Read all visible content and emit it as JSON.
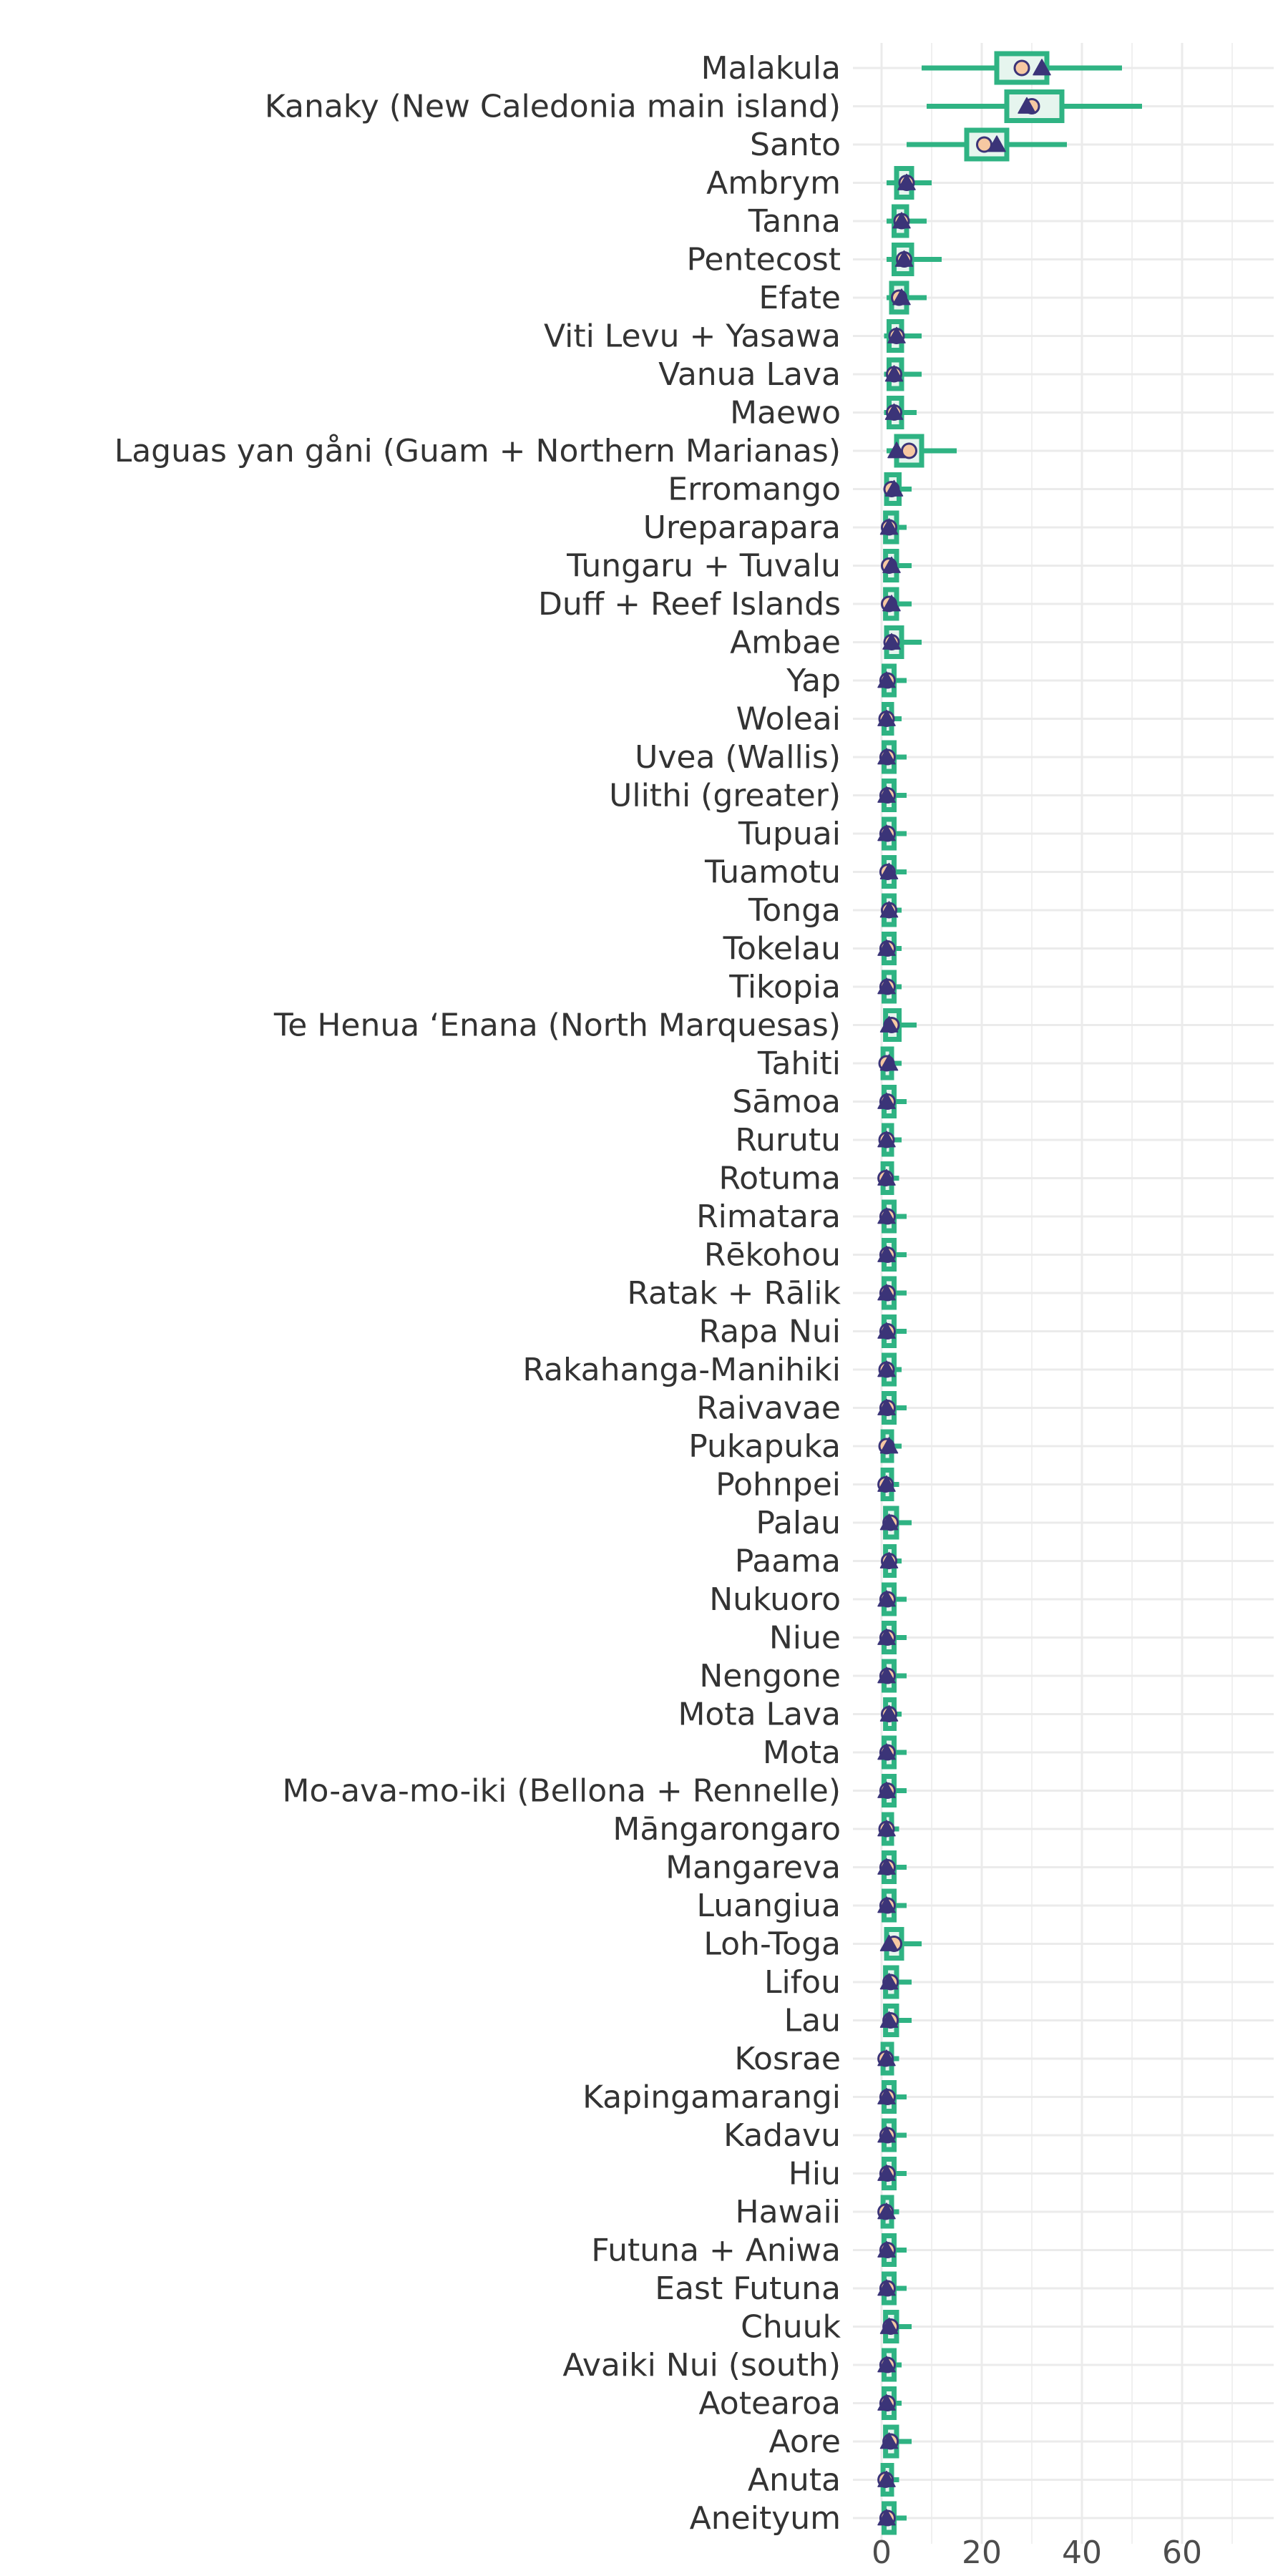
{
  "colors": {
    "whisker": "#2fb383",
    "box_edge": "#2fb383",
    "box_fill": "#e6f5ee",
    "mean_point": "#f6c8a2",
    "triangle": "#3b3478",
    "grid": "#ebebeb",
    "label": "#333333"
  },
  "chart_data": {
    "type": "boxplot",
    "orientation": "horizontal",
    "title": "",
    "xlabel": "",
    "ylabel": "",
    "xlim": [
      -4,
      78
    ],
    "x_ticks": [
      0,
      20,
      40,
      60
    ],
    "grid": "on",
    "legend": "none",
    "categories": [
      {
        "name": "Malakula",
        "lo": 8,
        "q1": 23,
        "q3": 33,
        "hi": 48,
        "dot": 28,
        "tri": 32
      },
      {
        "name": "Kanaky (New Caledonia main island)",
        "lo": 9,
        "q1": 25,
        "q3": 36,
        "hi": 52,
        "dot": 30,
        "tri": 29
      },
      {
        "name": "Santo",
        "lo": 5,
        "q1": 17,
        "q3": 25,
        "hi": 37,
        "dot": 20.5,
        "tri": 23
      },
      {
        "name": "Ambrym",
        "lo": 1,
        "q1": 3,
        "q3": 6,
        "hi": 10,
        "dot": 5,
        "tri": 5
      },
      {
        "name": "Tanna",
        "lo": 1,
        "q1": 2.5,
        "q3": 5,
        "hi": 9,
        "dot": 4,
        "tri": 4
      },
      {
        "name": "Pentecost",
        "lo": 1,
        "q1": 2.5,
        "q3": 6,
        "hi": 12,
        "dot": 4.5,
        "tri": 4.5
      },
      {
        "name": "Efate",
        "lo": 1,
        "q1": 2,
        "q3": 5,
        "hi": 9,
        "dot": 3.5,
        "tri": 4
      },
      {
        "name": "Viti Levu + Yasawa",
        "lo": 0.5,
        "q1": 1.5,
        "q3": 4,
        "hi": 8,
        "dot": 3,
        "tri": 3
      },
      {
        "name": "Vanua Lava",
        "lo": 0.5,
        "q1": 1.5,
        "q3": 4,
        "hi": 8,
        "dot": 2.5,
        "tri": 2.5
      },
      {
        "name": "Maewo",
        "lo": 0.5,
        "q1": 1.5,
        "q3": 4,
        "hi": 7,
        "dot": 2.5,
        "tri": 2.5
      },
      {
        "name": "Laguas yan gåni (Guam + Northern Marianas)",
        "lo": 1,
        "q1": 3,
        "q3": 8,
        "hi": 15,
        "dot": 5.5,
        "tri": 3
      },
      {
        "name": "Erromango",
        "lo": 0.5,
        "q1": 1,
        "q3": 3.5,
        "hi": 6,
        "dot": 2,
        "tri": 2.5
      },
      {
        "name": "Ureparapara",
        "lo": 0.3,
        "q1": 0.8,
        "q3": 3,
        "hi": 5,
        "dot": 1.5,
        "tri": 1.5
      },
      {
        "name": "Tungaru + Tuvalu",
        "lo": 0.3,
        "q1": 0.8,
        "q3": 3,
        "hi": 6,
        "dot": 1.5,
        "tri": 2
      },
      {
        "name": "Duff + Reef Islands",
        "lo": 0.3,
        "q1": 0.8,
        "q3": 3,
        "hi": 6,
        "dot": 1.5,
        "tri": 2
      },
      {
        "name": "Ambae",
        "lo": 0.5,
        "q1": 1,
        "q3": 4,
        "hi": 8,
        "dot": 2,
        "tri": 2
      },
      {
        "name": "Yap",
        "lo": 0.2,
        "q1": 0.5,
        "q3": 2.5,
        "hi": 5,
        "dot": 1.2,
        "tri": 1
      },
      {
        "name": "Woleai",
        "lo": 0.2,
        "q1": 0.5,
        "q3": 2,
        "hi": 4,
        "dot": 1,
        "tri": 1
      },
      {
        "name": "Uvea (Wallis)",
        "lo": 0.2,
        "q1": 0.5,
        "q3": 2.5,
        "hi": 5,
        "dot": 1.2,
        "tri": 1
      },
      {
        "name": "Ulithi (greater)",
        "lo": 0.2,
        "q1": 0.5,
        "q3": 2.5,
        "hi": 5,
        "dot": 1.2,
        "tri": 1
      },
      {
        "name": "Tupuai",
        "lo": 0.2,
        "q1": 0.5,
        "q3": 2.5,
        "hi": 5,
        "dot": 1.2,
        "tri": 1
      },
      {
        "name": "Tuamotu",
        "lo": 0.2,
        "q1": 0.5,
        "q3": 2.5,
        "hi": 5,
        "dot": 1.2,
        "tri": 1.5
      },
      {
        "name": "Tonga",
        "lo": 0.2,
        "q1": 0.5,
        "q3": 2.5,
        "hi": 4,
        "dot": 1.5,
        "tri": 1.5
      },
      {
        "name": "Tokelau",
        "lo": 0.2,
        "q1": 0.5,
        "q3": 2.5,
        "hi": 4,
        "dot": 1.2,
        "tri": 1
      },
      {
        "name": "Tikopia",
        "lo": 0.2,
        "q1": 0.5,
        "q3": 2.5,
        "hi": 4,
        "dot": 1.2,
        "tri": 1
      },
      {
        "name": "Te Henua ʻEnana (North Marquesas)",
        "lo": 0.3,
        "q1": 0.8,
        "q3": 3.5,
        "hi": 7,
        "dot": 2,
        "tri": 1.5
      },
      {
        "name": "Tahiti",
        "lo": 0.1,
        "q1": 0.3,
        "q3": 2,
        "hi": 4,
        "dot": 1,
        "tri": 1.5
      },
      {
        "name": "Sāmoa",
        "lo": 0.2,
        "q1": 0.5,
        "q3": 2.5,
        "hi": 5,
        "dot": 1.2,
        "tri": 1
      },
      {
        "name": "Rurutu",
        "lo": 0.2,
        "q1": 0.5,
        "q3": 2,
        "hi": 4,
        "dot": 1,
        "tri": 1
      },
      {
        "name": "Rotuma",
        "lo": 0.1,
        "q1": 0.3,
        "q3": 2,
        "hi": 3.5,
        "dot": 0.8,
        "tri": 1
      },
      {
        "name": "Rimatara",
        "lo": 0.2,
        "q1": 0.5,
        "q3": 2.5,
        "hi": 5,
        "dot": 1.2,
        "tri": 1
      },
      {
        "name": "Rēkohou",
        "lo": 0.2,
        "q1": 0.5,
        "q3": 2.5,
        "hi": 5,
        "dot": 1.2,
        "tri": 1
      },
      {
        "name": "Ratak + Rālik",
        "lo": 0.2,
        "q1": 0.5,
        "q3": 2.5,
        "hi": 5,
        "dot": 1.2,
        "tri": 1
      },
      {
        "name": "Rapa Nui",
        "lo": 0.2,
        "q1": 0.5,
        "q3": 2.5,
        "hi": 5,
        "dot": 1.2,
        "tri": 1
      },
      {
        "name": "Rakahanga-Manihiki",
        "lo": 0.2,
        "q1": 0.5,
        "q3": 2.5,
        "hi": 4,
        "dot": 1,
        "tri": 1
      },
      {
        "name": "Raivavae",
        "lo": 0.2,
        "q1": 0.5,
        "q3": 2.5,
        "hi": 5,
        "dot": 1.2,
        "tri": 1
      },
      {
        "name": "Pukapuka",
        "lo": 0.1,
        "q1": 0.3,
        "q3": 2,
        "hi": 4,
        "dot": 1,
        "tri": 1.5
      },
      {
        "name": "Pohnpei",
        "lo": 0.1,
        "q1": 0.3,
        "q3": 2,
        "hi": 3.5,
        "dot": 0.8,
        "tri": 1
      },
      {
        "name": "Palau",
        "lo": 0.3,
        "q1": 0.8,
        "q3": 3,
        "hi": 6,
        "dot": 1.8,
        "tri": 1.5
      },
      {
        "name": "Paama",
        "lo": 0.3,
        "q1": 0.8,
        "q3": 2.5,
        "hi": 4,
        "dot": 1.5,
        "tri": 1.5
      },
      {
        "name": "Nukuoro",
        "lo": 0.2,
        "q1": 0.5,
        "q3": 2.5,
        "hi": 5,
        "dot": 1.2,
        "tri": 1
      },
      {
        "name": "Niue",
        "lo": 0.2,
        "q1": 0.5,
        "q3": 2.5,
        "hi": 5,
        "dot": 1.2,
        "tri": 1
      },
      {
        "name": "Nengone",
        "lo": 0.2,
        "q1": 0.5,
        "q3": 2.5,
        "hi": 5,
        "dot": 1.2,
        "tri": 1
      },
      {
        "name": "Mota Lava",
        "lo": 0.3,
        "q1": 0.8,
        "q3": 2.5,
        "hi": 4,
        "dot": 1.5,
        "tri": 1.5
      },
      {
        "name": "Mota",
        "lo": 0.2,
        "q1": 0.5,
        "q3": 2.5,
        "hi": 5,
        "dot": 1.2,
        "tri": 1
      },
      {
        "name": "Mo-ava-mo-iki (Bellona + Rennelle)",
        "lo": 0.2,
        "q1": 0.5,
        "q3": 2.5,
        "hi": 5,
        "dot": 1.2,
        "tri": 1
      },
      {
        "name": "Māngarongaro",
        "lo": 0.2,
        "q1": 0.5,
        "q3": 2,
        "hi": 3.5,
        "dot": 1,
        "tri": 1
      },
      {
        "name": "Mangareva",
        "lo": 0.2,
        "q1": 0.5,
        "q3": 2.5,
        "hi": 5,
        "dot": 1.2,
        "tri": 1
      },
      {
        "name": "Luangiua",
        "lo": 0.2,
        "q1": 0.5,
        "q3": 2.5,
        "hi": 5,
        "dot": 1.2,
        "tri": 1
      },
      {
        "name": "Loh-Toga",
        "lo": 0.5,
        "q1": 1,
        "q3": 4,
        "hi": 8,
        "dot": 2.5,
        "tri": 1.5
      },
      {
        "name": "Lifou",
        "lo": 0.3,
        "q1": 0.8,
        "q3": 3,
        "hi": 6,
        "dot": 1.8,
        "tri": 1.5
      },
      {
        "name": "Lau",
        "lo": 0.3,
        "q1": 0.8,
        "q3": 3,
        "hi": 6,
        "dot": 1.8,
        "tri": 1.5
      },
      {
        "name": "Kosrae",
        "lo": 0.1,
        "q1": 0.3,
        "q3": 2,
        "hi": 3.5,
        "dot": 0.8,
        "tri": 1
      },
      {
        "name": "Kapingamarangi",
        "lo": 0.2,
        "q1": 0.5,
        "q3": 2.5,
        "hi": 5,
        "dot": 1.2,
        "tri": 1
      },
      {
        "name": "Kadavu",
        "lo": 0.2,
        "q1": 0.5,
        "q3": 2.5,
        "hi": 5,
        "dot": 1.2,
        "tri": 1
      },
      {
        "name": "Hiu",
        "lo": 0.2,
        "q1": 0.5,
        "q3": 2.5,
        "hi": 5,
        "dot": 1.2,
        "tri": 1
      },
      {
        "name": "Hawaii",
        "lo": 0.1,
        "q1": 0.3,
        "q3": 2,
        "hi": 3.5,
        "dot": 0.8,
        "tri": 1
      },
      {
        "name": "Futuna + Aniwa",
        "lo": 0.2,
        "q1": 0.5,
        "q3": 2.5,
        "hi": 5,
        "dot": 1.2,
        "tri": 1
      },
      {
        "name": "East Futuna",
        "lo": 0.2,
        "q1": 0.5,
        "q3": 2.5,
        "hi": 5,
        "dot": 1.2,
        "tri": 1
      },
      {
        "name": "Chuuk",
        "lo": 0.3,
        "q1": 0.8,
        "q3": 3,
        "hi": 6,
        "dot": 1.8,
        "tri": 1.5
      },
      {
        "name": "Avaiki Nui (south)",
        "lo": 0.2,
        "q1": 0.5,
        "q3": 2.5,
        "hi": 4,
        "dot": 1.2,
        "tri": 1
      },
      {
        "name": "Aotearoa",
        "lo": 0.2,
        "q1": 0.5,
        "q3": 2.5,
        "hi": 4,
        "dot": 1.2,
        "tri": 1
      },
      {
        "name": "Aore",
        "lo": 0.3,
        "q1": 0.8,
        "q3": 3,
        "hi": 6,
        "dot": 1.8,
        "tri": 1.5
      },
      {
        "name": "Anuta",
        "lo": 0.1,
        "q1": 0.3,
        "q3": 2,
        "hi": 3.5,
        "dot": 0.8,
        "tri": 1
      },
      {
        "name": "Aneityum",
        "lo": 0.2,
        "q1": 0.5,
        "q3": 2.5,
        "hi": 5,
        "dot": 1.2,
        "tri": 1
      }
    ]
  }
}
